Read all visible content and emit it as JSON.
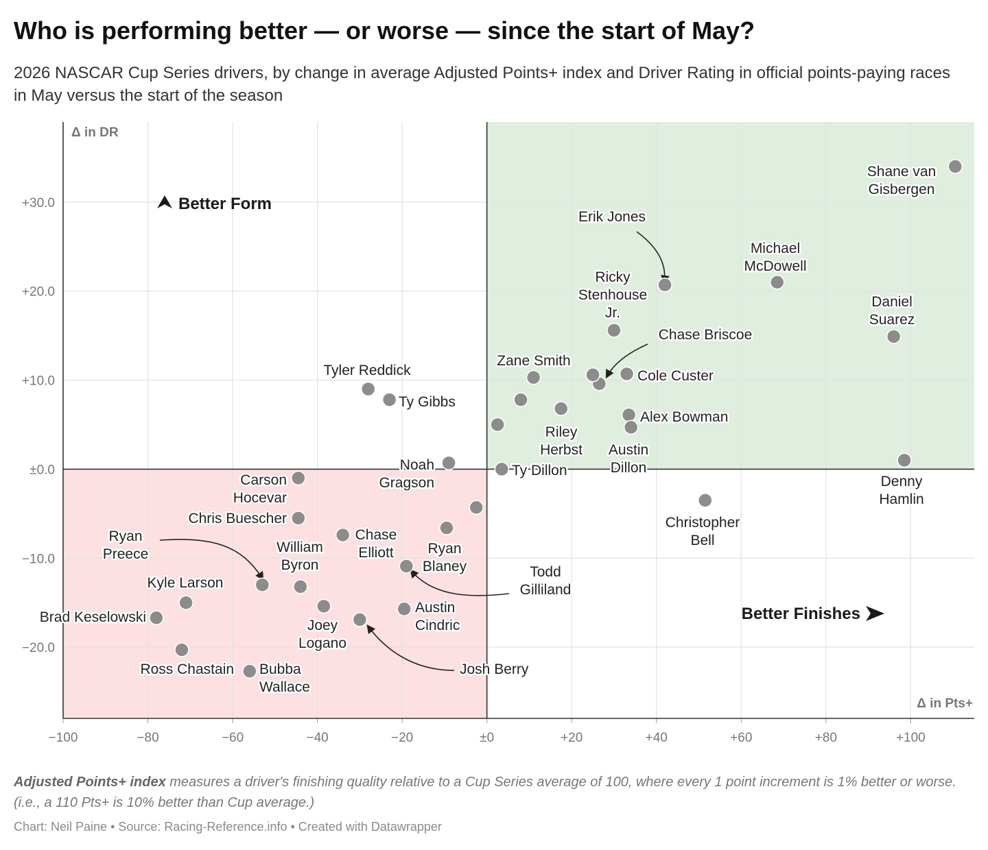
{
  "header": {
    "title": "Who is performing better — or worse — since the start of May?",
    "subtitle": "2026 NASCAR Cup Series drivers, by change in average Adjusted Points+ index and Driver Rating in official points-paying races in May versus the start of the season"
  },
  "notes": {
    "bold": "Adjusted Points+ index",
    "text": " measures a driver's finishing quality relative to a Cup Series average of 100, where every 1 point increment is 1% better or worse. (i.e., a 110 Pts+ is 10% better than Cup average.)"
  },
  "byline": "Chart: Neil Paine • Source: Racing-Reference.info • Created with Datawrapper",
  "colors": {
    "better": "#dfeedf",
    "worse": "#fde0e2",
    "dot": "#8c8c8c",
    "axis": "#333333",
    "grid": "#e2e2e2"
  },
  "chart_data": {
    "type": "scatter",
    "xlabel": "Δ in Pts+",
    "ylabel": "Δ in DR",
    "xlim": [
      -100,
      115
    ],
    "ylim": [
      -28,
      39
    ],
    "grid": true,
    "x_ticks": [
      {
        "value": -100,
        "label": "−100"
      },
      {
        "value": -80,
        "label": "−80"
      },
      {
        "value": -60,
        "label": "−60"
      },
      {
        "value": -40,
        "label": "−40"
      },
      {
        "value": -20,
        "label": "−20"
      },
      {
        "value": 0,
        "label": "±0"
      },
      {
        "value": 20,
        "label": "+20"
      },
      {
        "value": 40,
        "label": "+40"
      },
      {
        "value": 60,
        "label": "+60"
      },
      {
        "value": 80,
        "label": "+80"
      },
      {
        "value": 100,
        "label": "+100"
      }
    ],
    "y_ticks": [
      {
        "value": 30,
        "label": "+30.0"
      },
      {
        "value": 20,
        "label": "+20.0"
      },
      {
        "value": 10,
        "label": "+10.0"
      },
      {
        "value": 0,
        "label": "±0.0"
      },
      {
        "value": -10,
        "label": "−10.0"
      },
      {
        "value": -20,
        "label": "−20.0"
      }
    ],
    "zones": {
      "top_left": "Better Form",
      "bottom_right": "Better Finishes"
    },
    "points": [
      {
        "name": "Shane van Gisbergen",
        "x": 110.5,
        "y": 34.0
      },
      {
        "name": "Michael McDowell",
        "x": 68.5,
        "y": 21.0
      },
      {
        "name": "Erik Jones",
        "x": 42.0,
        "y": 20.7
      },
      {
        "name": "Daniel Suarez",
        "x": 96.0,
        "y": 14.9
      },
      {
        "name": "Denny Hamlin",
        "x": 98.5,
        "y": 1.0
      },
      {
        "name": "Ricky Stenhouse Jr.",
        "x": 30.0,
        "y": 15.6
      },
      {
        "name": "Chase Briscoe",
        "x": 26.5,
        "y": 9.6
      },
      {
        "name": "",
        "x": 25.0,
        "y": 10.6
      },
      {
        "name": "Cole Custer",
        "x": 33.0,
        "y": 10.7
      },
      {
        "name": "Zane Smith",
        "x": 11.0,
        "y": 10.3
      },
      {
        "name": "",
        "x": 8.0,
        "y": 7.8
      },
      {
        "name": "Riley Herbst",
        "x": 17.5,
        "y": 6.8
      },
      {
        "name": "Alex Bowman",
        "x": 33.5,
        "y": 6.1
      },
      {
        "name": "Austin Dillon",
        "x": 34.0,
        "y": 4.7
      },
      {
        "name": "",
        "x": 2.5,
        "y": 5.0
      },
      {
        "name": "Ty Dillon",
        "x": 3.5,
        "y": 0.0
      },
      {
        "name": "Christopher Bell",
        "x": 51.5,
        "y": -3.5
      },
      {
        "name": "Tyler Reddick",
        "x": -28.0,
        "y": 9.0
      },
      {
        "name": "Ty Gibbs",
        "x": -23.0,
        "y": 7.8
      },
      {
        "name": "Noah Gragson",
        "x": -9.0,
        "y": 0.7
      },
      {
        "name": "Carson Hocevar",
        "x": -44.5,
        "y": -1.0
      },
      {
        "name": "Chris Buescher",
        "x": -44.5,
        "y": -5.5
      },
      {
        "name": "",
        "x": -2.5,
        "y": -4.3
      },
      {
        "name": "Chase Elliott",
        "x": -34.0,
        "y": -7.4
      },
      {
        "name": "",
        "x": -9.5,
        "y": -6.6
      },
      {
        "name": "Ryan Blaney",
        "x": -19.0,
        "y": -10.9
      },
      {
        "name": "Ryan Preece",
        "x": -53.0,
        "y": -13.0
      },
      {
        "name": "William Byron",
        "x": -44.0,
        "y": -13.2
      },
      {
        "name": "Kyle Larson",
        "x": -71.0,
        "y": -15.0
      },
      {
        "name": "",
        "x": -38.5,
        "y": -15.4
      },
      {
        "name": "Austin Cindric",
        "x": -19.5,
        "y": -15.7
      },
      {
        "name": "Joey Logano",
        "x": -30.0,
        "y": -16.9
      },
      {
        "name": "Brad Keselowski",
        "x": -78.0,
        "y": -16.7
      },
      {
        "name": "Ross Chastain",
        "x": -72.0,
        "y": -20.3
      },
      {
        "name": "Bubba Wallace",
        "x": -56.0,
        "y": -22.7
      }
    ],
    "labels": [
      {
        "key": "svg",
        "lines": [
          "Shane van",
          "Gisbergen"
        ]
      },
      {
        "key": "mcd",
        "lines": [
          "Michael",
          "McDowell"
        ]
      },
      {
        "key": "ej",
        "lines": [
          "Erik Jones"
        ]
      },
      {
        "key": "ds",
        "lines": [
          "Daniel",
          "Suarez"
        ]
      },
      {
        "key": "dh",
        "lines": [
          "Denny",
          "Hamlin"
        ]
      },
      {
        "key": "rs",
        "lines": [
          "Ricky",
          "Stenhouse",
          "Jr."
        ]
      },
      {
        "key": "cb",
        "lines": [
          "Chase Briscoe"
        ]
      },
      {
        "key": "cc",
        "lines": [
          "Cole Custer"
        ]
      },
      {
        "key": "zs",
        "lines": [
          "Zane Smith"
        ]
      },
      {
        "key": "rh",
        "lines": [
          "Riley",
          "Herbst"
        ]
      },
      {
        "key": "ab",
        "lines": [
          "Alex Bowman"
        ]
      },
      {
        "key": "ad",
        "lines": [
          "Austin",
          "Dillon"
        ]
      },
      {
        "key": "td",
        "lines": [
          "Ty Dillon"
        ]
      },
      {
        "key": "cbe",
        "lines": [
          "Christopher",
          "Bell"
        ]
      },
      {
        "key": "tr",
        "lines": [
          "Tyler Reddick"
        ]
      },
      {
        "key": "tg",
        "lines": [
          "Ty Gibbs"
        ]
      },
      {
        "key": "ng",
        "lines": [
          "Noah",
          "Gragson"
        ]
      },
      {
        "key": "ch",
        "lines": [
          "Carson",
          "Hocevar"
        ]
      },
      {
        "key": "cbu",
        "lines": [
          "Chris Buescher"
        ]
      },
      {
        "key": "ce",
        "lines": [
          "Chase",
          "Elliott"
        ]
      },
      {
        "key": "rb",
        "lines": [
          "Ryan",
          "Blaney"
        ]
      },
      {
        "key": "tgi",
        "lines": [
          "Todd",
          "Gilliland"
        ]
      },
      {
        "key": "rp",
        "lines": [
          "Ryan",
          "Preece"
        ]
      },
      {
        "key": "wb",
        "lines": [
          "William",
          "Byron"
        ]
      },
      {
        "key": "kl",
        "lines": [
          "Kyle Larson"
        ]
      },
      {
        "key": "ac",
        "lines": [
          "Austin",
          "Cindric"
        ]
      },
      {
        "key": "jl",
        "lines": [
          "Joey",
          "Logano"
        ]
      },
      {
        "key": "bk",
        "lines": [
          "Brad Keselowski"
        ]
      },
      {
        "key": "rc",
        "lines": [
          "Ross Chastain"
        ]
      },
      {
        "key": "bw",
        "lines": [
          "Bubba",
          "Wallace"
        ]
      },
      {
        "key": "jb",
        "lines": [
          "Josh Berry"
        ]
      }
    ]
  }
}
